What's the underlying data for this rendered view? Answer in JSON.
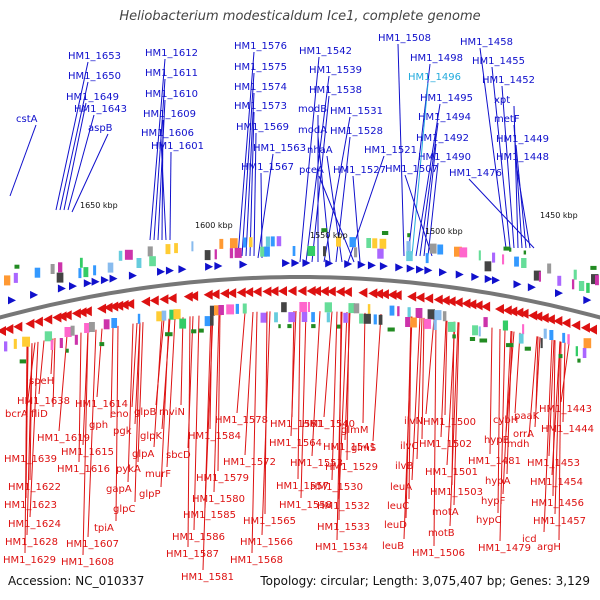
{
  "title": "Heliobacterium modesticaldum Ice1, complete genome",
  "footer": {
    "accession": "Accession: NC_010337",
    "stats": "Topology: circular; Length: 3,075,407 bp; Genes: 3,129"
  },
  "colors": {
    "forward": "#1010cc",
    "reverse": "#dd1111",
    "highlight": "#22aadd",
    "backbone": "#777777",
    "tick": "#228b22"
  },
  "kbp_ticks": [
    "1650 kbp",
    "1600 kbp",
    "1550 kbp",
    "1500 kbp",
    "1450 kbp"
  ],
  "forward_labels": [
    {
      "text": "cstA",
      "highlight": false
    },
    {
      "text": "HM1_1653",
      "highlight": false
    },
    {
      "text": "HM1_1650",
      "highlight": false
    },
    {
      "text": "HM1_1649",
      "highlight": false
    },
    {
      "text": "HM1_1643",
      "highlight": false
    },
    {
      "text": "aspB",
      "highlight": false
    },
    {
      "text": "HM1_1612",
      "highlight": false
    },
    {
      "text": "HM1_1611",
      "highlight": false
    },
    {
      "text": "HM1_1610",
      "highlight": false
    },
    {
      "text": "HM1_1609",
      "highlight": false
    },
    {
      "text": "HM1_1606",
      "highlight": false
    },
    {
      "text": "HM1_1601",
      "highlight": false
    },
    {
      "text": "HM1_1576",
      "highlight": false
    },
    {
      "text": "HM1_1575",
      "highlight": false
    },
    {
      "text": "HM1_1574",
      "highlight": false
    },
    {
      "text": "HM1_1573",
      "highlight": false
    },
    {
      "text": "HM1_1569",
      "highlight": false
    },
    {
      "text": "HM1_1563",
      "highlight": false
    },
    {
      "text": "HM1_1567",
      "highlight": false
    },
    {
      "text": "HM1_1542",
      "highlight": false
    },
    {
      "text": "HM1_1539",
      "highlight": false
    },
    {
      "text": "HM1_1538",
      "highlight": false
    },
    {
      "text": "modB",
      "highlight": false
    },
    {
      "text": "HM1_1531",
      "highlight": false
    },
    {
      "text": "modA",
      "highlight": false
    },
    {
      "text": "HM1_1528",
      "highlight": false
    },
    {
      "text": "nhaA",
      "highlight": false
    },
    {
      "text": "HM1_1521",
      "highlight": false
    },
    {
      "text": "pceA",
      "highlight": false
    },
    {
      "text": "HM1_1527",
      "highlight": false
    },
    {
      "text": "HM1_1508",
      "highlight": false
    },
    {
      "text": "HM1_1498",
      "highlight": false
    },
    {
      "text": "HM1_1496",
      "highlight": true
    },
    {
      "text": "HM1_1495",
      "highlight": false
    },
    {
      "text": "HM1_1494",
      "highlight": false
    },
    {
      "text": "HM1_1492",
      "highlight": false
    },
    {
      "text": "HM1_1490",
      "highlight": false
    },
    {
      "text": "HM1_1507",
      "highlight": false
    },
    {
      "text": "HM1_1458",
      "highlight": false
    },
    {
      "text": "HM1_1455",
      "highlight": false
    },
    {
      "text": "HM1_1452",
      "highlight": false
    },
    {
      "text": "xpt",
      "highlight": false
    },
    {
      "text": "metF",
      "highlight": false
    },
    {
      "text": "HM1_1449",
      "highlight": false
    },
    {
      "text": "HM1_1448",
      "highlight": false
    },
    {
      "text": "HM1_1476",
      "highlight": false
    }
  ],
  "reverse_labels": [
    "speH",
    "HM1_1638",
    "bcrA",
    "fliD",
    "HM1_1614",
    "HM1_1619",
    "gph",
    "eno",
    "glpB",
    "mviN",
    "pgk",
    "glpK",
    "HM1_1639",
    "HM1_1615",
    "glpA",
    "HM1_1616",
    "pykA",
    "murF",
    "HM1_1622",
    "gapA",
    "glpP",
    "HM1_1623",
    "glpC",
    "HM1_1624",
    "tpiA",
    "HM1_1628",
    "HM1_1607",
    "HM1_1629",
    "HM1_1608",
    "HM1_1578",
    "HM1_1584",
    "sbcD",
    "HM1_1572",
    "HM1_1579",
    "HM1_1580",
    "HM1_1585",
    "HM1_1565",
    "HM1_1586",
    "HM1_1566",
    "HM1_1587",
    "HM1_1568",
    "HM1_1581",
    "HM1_1561",
    "HM1_1564",
    "HM1_1553",
    "HM1_1557",
    "HM1_1558",
    "HM1_1540",
    "glmM",
    "HM1_1541",
    "glmS",
    "HM1_1529",
    "HM1_1530",
    "HM1_1532",
    "HM1_1533",
    "HM1_1534",
    "ilvN",
    "ilvC",
    "ilvB",
    "leuA",
    "leuC",
    "leuD",
    "leuB",
    "HM1_1500",
    "HM1_1502",
    "HM1_1501",
    "HM1_1503",
    "motA",
    "motB",
    "HM1_1506",
    "cybH",
    "hypB",
    "HM1_1481",
    "hypA",
    "hypF",
    "hypC",
    "HM1_1479",
    "mdh",
    "paaK",
    "orrA",
    "HM1_1443",
    "HM1_1444",
    "HM1_1453",
    "HM1_1454",
    "HM1_1456",
    "HM1_1457",
    "icd",
    "argH"
  ]
}
